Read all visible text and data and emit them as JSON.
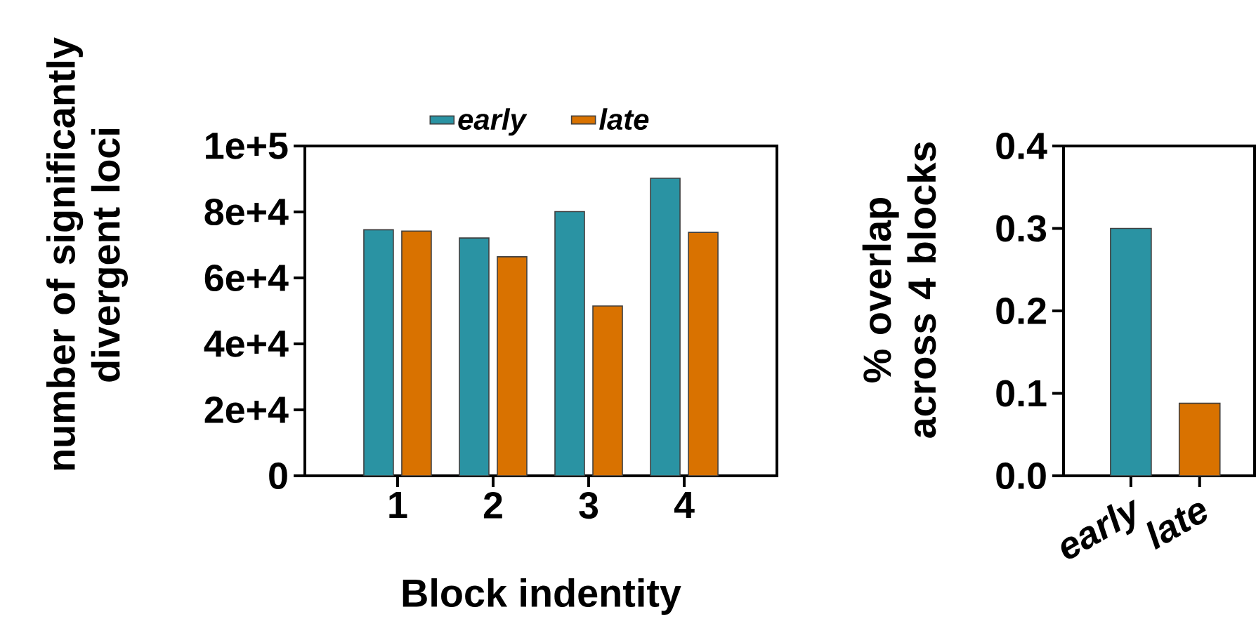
{
  "chart_data": [
    {
      "type": "bar",
      "categories": [
        "1",
        "2",
        "3",
        "4"
      ],
      "series": [
        {
          "name": "early",
          "color": "#2a93a3",
          "values": [
            74600,
            72100,
            80100,
            90200
          ]
        },
        {
          "name": "late",
          "color": "#d97200",
          "values": [
            74200,
            66400,
            51500,
            73800
          ]
        }
      ],
      "ylim": [
        0,
        100000
      ],
      "yticks": [
        0,
        {
          "value": 20000,
          "label": "2e+4"
        },
        {
          "value": 40000,
          "label": "4e+4"
        },
        {
          "value": 60000,
          "label": "6e+4"
        },
        {
          "value": 80000,
          "label": "8e+4"
        },
        {
          "value": 100000,
          "label": "1e+5"
        }
      ],
      "xlabel": "Block indentity",
      "ylabel": "number of significantly divergent loci",
      "legend": "top"
    },
    {
      "type": "bar",
      "categories": [
        "early",
        "late"
      ],
      "values": [
        0.3,
        0.088
      ],
      "colors": [
        "#2a93a3",
        "#d97200"
      ],
      "ylim": [
        0,
        0.4
      ],
      "yticks": [
        {
          "value": 0,
          "label": "0.0"
        },
        0.1,
        0.2,
        0.3,
        0.4
      ],
      "ylabel": "% overlap across 4 blocks"
    }
  ]
}
